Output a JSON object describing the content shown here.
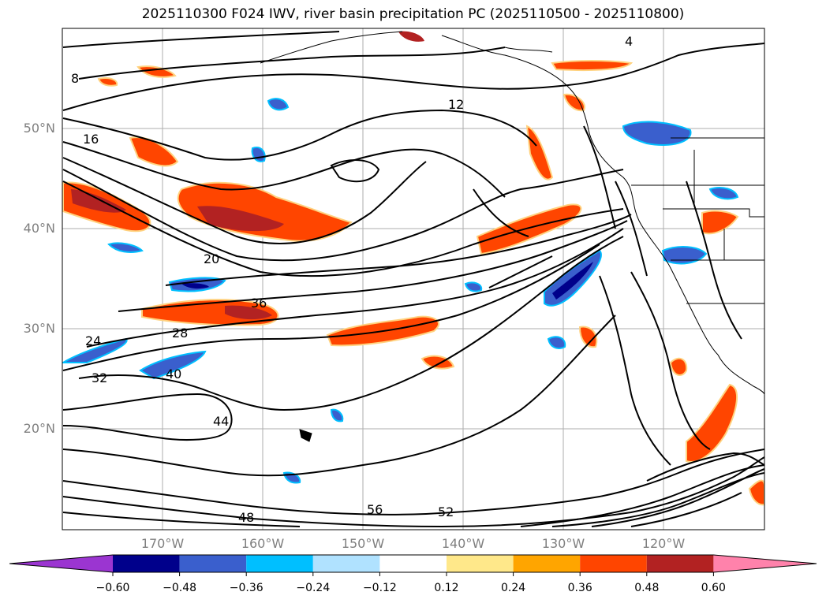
{
  "title": "2025110300 F024 IWV, river basin precipitation PC (2025110500 - 2025110800)",
  "latitude_labels": [
    "50°N",
    "40°N",
    "30°N",
    "20°N"
  ],
  "longitude_labels": [
    "170°W",
    "160°W",
    "150°W",
    "140°W",
    "130°W",
    "120°W"
  ],
  "colorbar": {
    "tick_labels": [
      "−0.60",
      "−0.48",
      "−0.36",
      "−0.24",
      "−0.12",
      "0.12",
      "0.24",
      "0.36",
      "0.48",
      "0.60"
    ],
    "colors": [
      "#9b35d1",
      "#00008b",
      "#3a5fcd",
      "#00bfff",
      "#b0e2ff",
      "#ffffff",
      "#ffe88a",
      "#ffa500",
      "#ff4500",
      "#b22222",
      "#ff82ab"
    ]
  },
  "contour_labels": [
    "4",
    "8",
    "12",
    "16",
    "20",
    "24",
    "28",
    "32",
    "36",
    "40",
    "44",
    "48",
    "52",
    "56"
  ],
  "map_features": [
    "coastline",
    "gridlines",
    "state-borders",
    "river-basins"
  ]
}
